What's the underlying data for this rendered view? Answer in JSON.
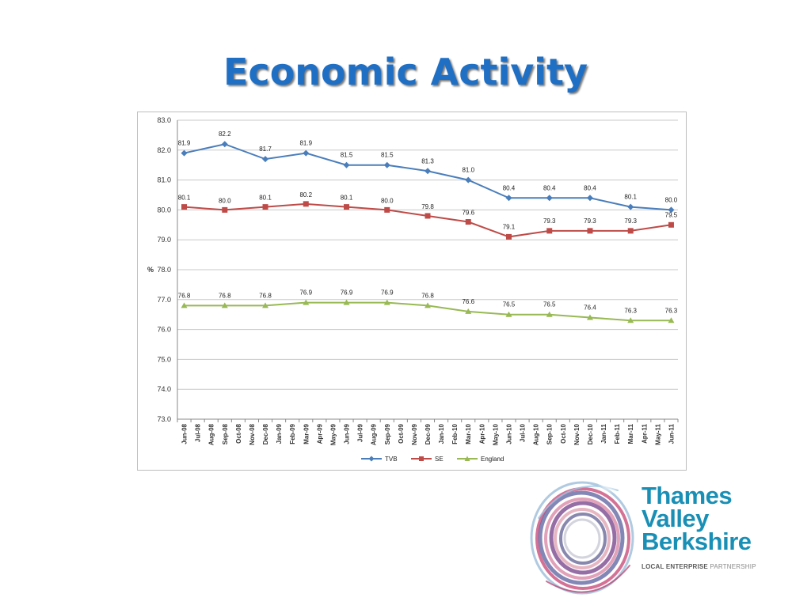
{
  "slide": {
    "title": "Economic Activity"
  },
  "logo": {
    "line1": "Thames",
    "line2": "Valley",
    "line3": "Berkshire",
    "tag_bold": "LOCAL ENTERPRISE",
    "tag_light": " PARTNERSHIP"
  },
  "chart_data": {
    "type": "line",
    "title": "",
    "xlabel": "",
    "ylabel": "%",
    "ylim": [
      73.0,
      83.0
    ],
    "yticks": [
      "73.0",
      "74.0",
      "75.0",
      "76.0",
      "77.0",
      "78.0",
      "79.0",
      "80.0",
      "81.0",
      "82.0",
      "83.0"
    ],
    "grid": true,
    "legend_position": "bottom",
    "categories": [
      "Jun-08",
      "Jul-08",
      "Aug-08",
      "Sep-08",
      "Oct-08",
      "Nov-08",
      "Dec-08",
      "Jan-09",
      "Feb-09",
      "Mar-09",
      "Apr-09",
      "May-09",
      "Jun-09",
      "Jul-09",
      "Aug-09",
      "Sep-09",
      "Oct-09",
      "Nov-09",
      "Dec-09",
      "Jan-10",
      "Feb-10",
      "Mar-10",
      "Apr-10",
      "May-10",
      "Jun-10",
      "Jul-10",
      "Aug-10",
      "Sep-10",
      "Oct-10",
      "Nov-10",
      "Dec-10",
      "Jan-11",
      "Feb-11",
      "Mar-11",
      "Apr-11",
      "May-11",
      "Jun-11"
    ],
    "series": [
      {
        "name": "TVB",
        "color": "#4a7ebb",
        "marker": "diamond",
        "points": [
          {
            "category": "Jun-08",
            "value": 81.9,
            "label": "81.9"
          },
          {
            "category": "Sep-08",
            "value": 82.2,
            "label": "82.2"
          },
          {
            "category": "Dec-08",
            "value": 81.7,
            "label": "81.7"
          },
          {
            "category": "Mar-09",
            "value": 81.9,
            "label": "81.9"
          },
          {
            "category": "Jun-09",
            "value": 81.5,
            "label": "81.5"
          },
          {
            "category": "Sep-09",
            "value": 81.5,
            "label": "81.5"
          },
          {
            "category": "Dec-09",
            "value": 81.3,
            "label": "81.3"
          },
          {
            "category": "Mar-10",
            "value": 81.0,
            "label": "81.0"
          },
          {
            "category": "Jun-10",
            "value": 80.4,
            "label": "80.4"
          },
          {
            "category": "Sep-10",
            "value": 80.4,
            "label": "80.4"
          },
          {
            "category": "Dec-10",
            "value": 80.4,
            "label": "80.4"
          },
          {
            "category": "Mar-11",
            "value": 80.1,
            "label": "80.1"
          },
          {
            "category": "Jun-11",
            "value": 80.0,
            "label": "80.0"
          }
        ]
      },
      {
        "name": "SE",
        "color": "#be4b48",
        "marker": "square",
        "points": [
          {
            "category": "Jun-08",
            "value": 80.1,
            "label": "80.1"
          },
          {
            "category": "Sep-08",
            "value": 80.0,
            "label": "80.0"
          },
          {
            "category": "Dec-08",
            "value": 80.1,
            "label": "80.1"
          },
          {
            "category": "Mar-09",
            "value": 80.2,
            "label": "80.2"
          },
          {
            "category": "Jun-09",
            "value": 80.1,
            "label": "80.1"
          },
          {
            "category": "Sep-09",
            "value": 80.0,
            "label": "80.0"
          },
          {
            "category": "Dec-09",
            "value": 79.8,
            "label": "79.8"
          },
          {
            "category": "Mar-10",
            "value": 79.6,
            "label": "79.6"
          },
          {
            "category": "Jun-10",
            "value": 79.1,
            "label": "79.1"
          },
          {
            "category": "Sep-10",
            "value": 79.3,
            "label": "79.3"
          },
          {
            "category": "Dec-10",
            "value": 79.3,
            "label": "79.3"
          },
          {
            "category": "Mar-11",
            "value": 79.3,
            "label": "79.3"
          },
          {
            "category": "Jun-11",
            "value": 79.5,
            "label": "79.5"
          }
        ]
      },
      {
        "name": "England",
        "color": "#98b954",
        "marker": "triangle",
        "points": [
          {
            "category": "Jun-08",
            "value": 76.8,
            "label": "76.8"
          },
          {
            "category": "Sep-08",
            "value": 76.8,
            "label": "76.8"
          },
          {
            "category": "Dec-08",
            "value": 76.8,
            "label": "76.8"
          },
          {
            "category": "Mar-09",
            "value": 76.9,
            "label": "76.9"
          },
          {
            "category": "Jun-09",
            "value": 76.9,
            "label": "76.9"
          },
          {
            "category": "Sep-09",
            "value": 76.9,
            "label": "76.9"
          },
          {
            "category": "Dec-09",
            "value": 76.8,
            "label": "76.8"
          },
          {
            "category": "Mar-10",
            "value": 76.6,
            "label": "76.6"
          },
          {
            "category": "Jun-10",
            "value": 76.5,
            "label": "76.5"
          },
          {
            "category": "Sep-10",
            "value": 76.5,
            "label": "76.5"
          },
          {
            "category": "Dec-10",
            "value": 76.4,
            "label": "76.4"
          },
          {
            "category": "Mar-11",
            "value": 76.3,
            "label": "76.3"
          },
          {
            "category": "Jun-11",
            "value": 76.3,
            "label": "76.3"
          }
        ]
      }
    ]
  }
}
